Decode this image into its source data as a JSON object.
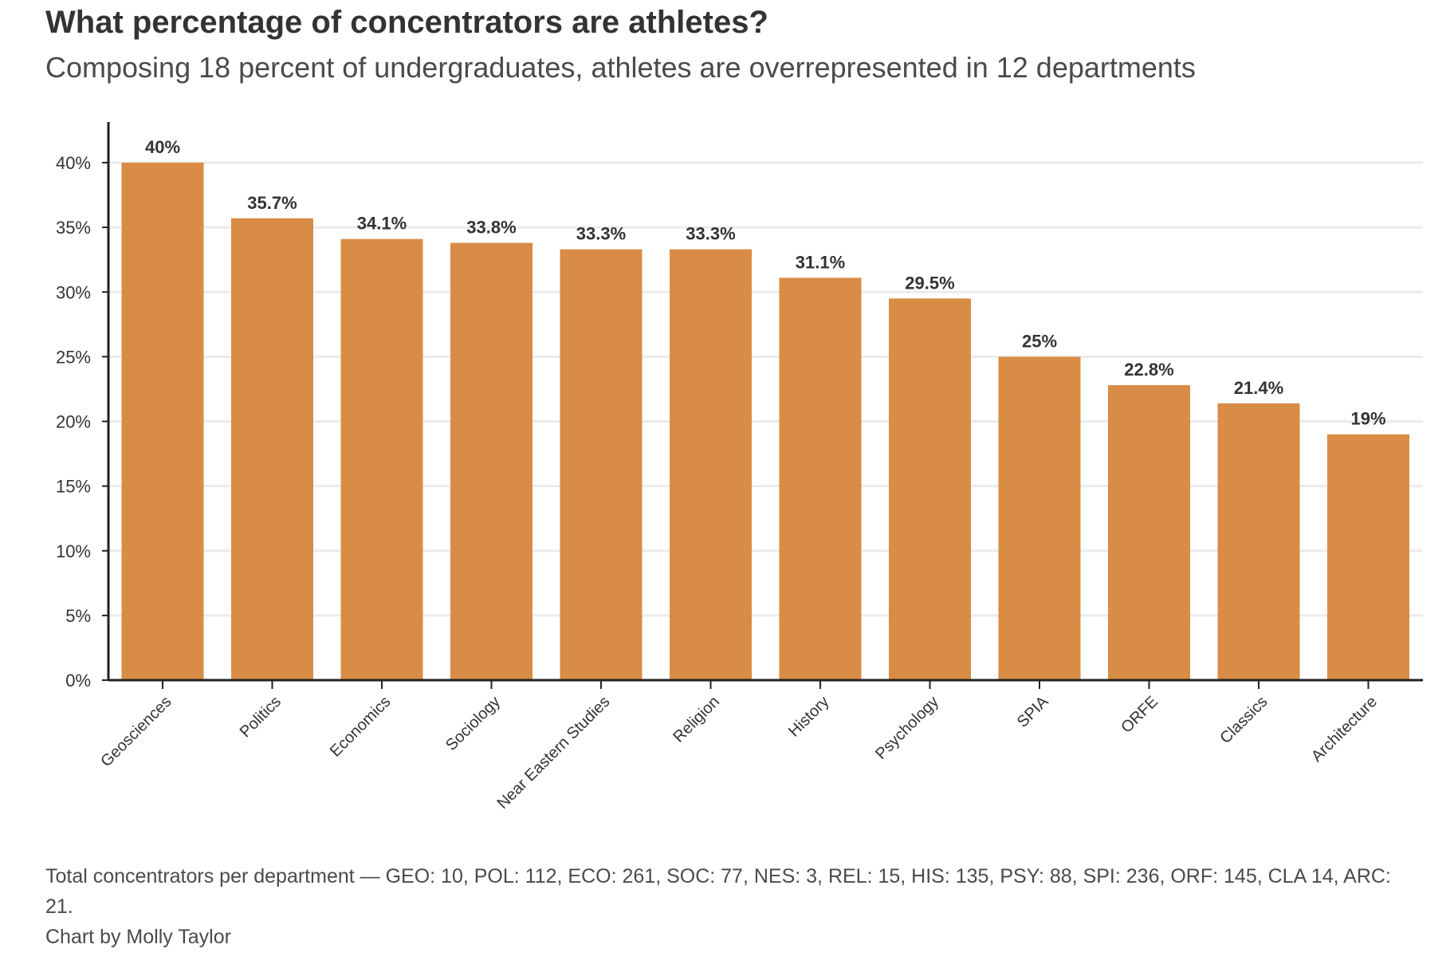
{
  "header": {
    "title": "What percentage of concentrators are athletes?",
    "subtitle": "Composing 18 percent of undergraduates, athletes are overrepresented in 12 departments"
  },
  "footer": {
    "note": "Total concentrators per department — GEO: 10, POL: 112, ECO: 261, SOC: 77, NES: 3, REL: 15, HIS: 135, PSY: 88, SPI: 236, ORF: 145, CLA 14, ARC: 21.",
    "credit": "Chart by Molly Taylor"
  },
  "colors": {
    "bar": "#d98c45",
    "grid": "#ebebeb",
    "axis": "#222222",
    "label": "#333333"
  },
  "chart_data": {
    "type": "bar",
    "title": "What percentage of concentrators are athletes?",
    "subtitle": "Composing 18 percent of undergraduates, athletes are overrepresented in 12 departments",
    "categories": [
      "Geosciences",
      "Politics",
      "Economics",
      "Sociology",
      "Near Eastern Studies",
      "Religion",
      "History",
      "Psychology",
      "SPIA",
      "ORFE",
      "Classics",
      "Architecture"
    ],
    "values": [
      40,
      35.7,
      34.1,
      33.8,
      33.3,
      33.3,
      31.1,
      29.5,
      25,
      22.8,
      21.4,
      19
    ],
    "data_labels": [
      "40%",
      "35.7%",
      "34.1%",
      "33.8%",
      "33.3%",
      "33.3%",
      "31.1%",
      "29.5%",
      "25%",
      "22.8%",
      "21.4%",
      "19%"
    ],
    "y_ticks": [
      0,
      5,
      10,
      15,
      20,
      25,
      30,
      35,
      40
    ],
    "y_tick_labels": [
      "0%",
      "5%",
      "10%",
      "15%",
      "20%",
      "25%",
      "30%",
      "35%",
      "40%"
    ],
    "xlabel": "",
    "ylabel": "",
    "ylim": [
      0,
      40
    ],
    "grid": true,
    "legend": "none"
  }
}
